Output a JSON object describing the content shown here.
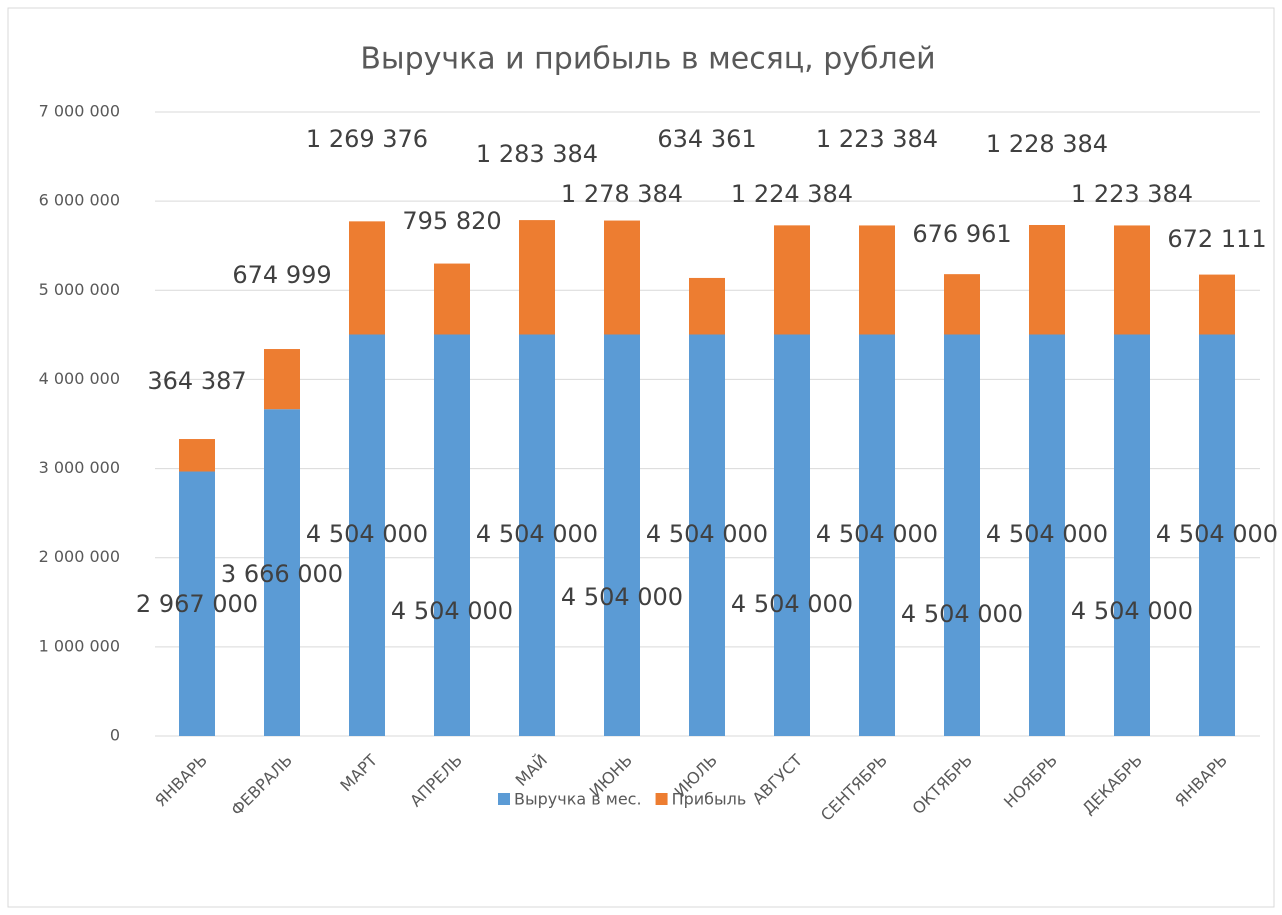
{
  "chart_data": {
    "type": "stacked_bar",
    "title": "Выручка и прибыль в месяц, рублей",
    "categories": [
      "ЯНВАРЬ",
      "ФЕВРАЛЬ",
      "МАРТ",
      "АПРЕЛЬ",
      "МАЙ",
      "ИЮНЬ",
      "ИЮЛЬ",
      "АВГУСТ",
      "СЕНТЯБРЬ",
      "ОКТЯБРЬ",
      "НОЯБРЬ",
      "ДЕКАБРЬ",
      "ЯНВАРЬ"
    ],
    "series": [
      {
        "name": "Выручка в мес.",
        "color": "#5b9bd5",
        "values": [
          2967000,
          3666000,
          4504000,
          4504000,
          4504000,
          4504000,
          4504000,
          4504000,
          4504000,
          4504000,
          4504000,
          4504000,
          4504000
        ],
        "value_labels": [
          "2 967 000",
          "3 666 000",
          "4 504 000",
          "4 504 000",
          "4 504 000",
          "4 504 000",
          "4 504 000",
          "4 504 000",
          "4 504 000",
          "4 504 000",
          "4 504 000",
          "4 504 000",
          "4 504 000"
        ]
      },
      {
        "name": "Прибыль",
        "color": "#ed7d31",
        "values": [
          364387,
          674999,
          1269376,
          795820,
          1283384,
          1278384,
          634361,
          1224384,
          1223384,
          676961,
          1228384,
          1223384,
          672111
        ],
        "value_labels": [
          "364 387",
          "674 999",
          "1 269 376",
          "795 820",
          "1 283 384",
          "1 278 384",
          "634 361",
          "1 224 384",
          "1 223 384",
          "676 961",
          "1 228 384",
          "1 223 384",
          "672 111"
        ]
      }
    ],
    "ylim": [
      0,
      7000000
    ],
    "yticks": [
      0,
      {
        "value": 1000000,
        "label": "1 000 000"
      },
      {
        "value": 2000000,
        "label": "2 000 000"
      },
      {
        "value": 3000000,
        "label": "3 000 000"
      },
      {
        "value": 4000000,
        "label": "4 000 000"
      },
      {
        "value": 5000000,
        "label": "5 000 000"
      },
      {
        "value": 6000000,
        "label": "6 000 000"
      },
      {
        "value": 7000000,
        "label": "7 000 000"
      }
    ],
    "grid": true,
    "legend": "bottom"
  }
}
